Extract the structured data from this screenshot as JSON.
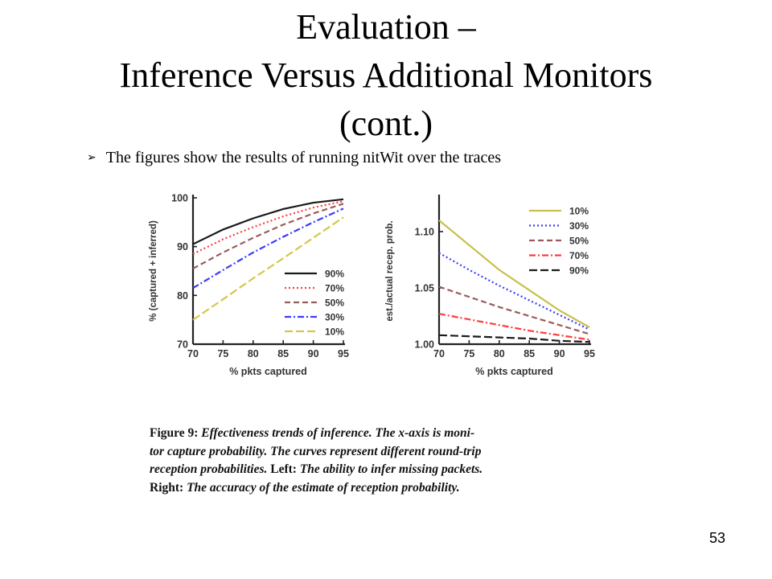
{
  "slide": {
    "title_lines": [
      "Evaluation –",
      "Inference Versus Additional Monitors",
      "(cont.)"
    ],
    "bullet": "The figures show the results of running nitWit over the traces",
    "page_number": "53"
  },
  "caption": {
    "lines": [
      [
        {
          "t": "Figure 9:",
          "up": true
        },
        {
          "t": "  Effectiveness trends of inference.  The "
        },
        {
          "t": "x",
          "up": false
        },
        {
          "t": "-axis is moni-"
        }
      ],
      [
        {
          "t": "tor capture probability.  The curves represent different round-trip"
        }
      ],
      [
        {
          "t": "reception probabilities.  "
        },
        {
          "t": "Left:",
          "up": true
        },
        {
          "t": "  The ability to infer missing packets."
        }
      ],
      [
        {
          "t": "Right:",
          "up": true
        },
        {
          "t": "  The accuracy of the estimate of reception probability."
        }
      ]
    ]
  },
  "chart_data": [
    {
      "type": "line",
      "title": "",
      "xlabel": "% pkts captured",
      "ylabel": "% (captured + inferred)",
      "xlim": [
        70,
        95
      ],
      "ylim": [
        70,
        100
      ],
      "xticks": [
        70,
        75,
        80,
        85,
        90,
        95
      ],
      "yticks": [
        70,
        80,
        90,
        100
      ],
      "grid": false,
      "legend_position": "bottom-right",
      "x": [
        70,
        75,
        80,
        85,
        90,
        95
      ],
      "series": [
        {
          "name": "90%",
          "color": "#1a1a1a",
          "dash": "solid",
          "values": [
            90.5,
            93.5,
            95.8,
            97.7,
            99.0,
            99.7
          ]
        },
        {
          "name": "70%",
          "color": "#ff3b3b",
          "dash": "dot",
          "values": [
            88.5,
            91.5,
            94.0,
            96.2,
            98.0,
            99.3
          ]
        },
        {
          "name": "50%",
          "color": "#9a5a5a",
          "dash": "dash",
          "values": [
            85.5,
            88.8,
            91.8,
            94.5,
            96.8,
            98.8
          ]
        },
        {
          "name": "30%",
          "color": "#3a3aff",
          "dash": "dashdot",
          "values": [
            81.5,
            85.2,
            88.8,
            92.0,
            95.0,
            97.8
          ]
        },
        {
          "name": "10%",
          "color": "#d4c84a",
          "dash": "longdash",
          "values": [
            75.0,
            79.2,
            83.5,
            87.6,
            91.8,
            96.0
          ]
        }
      ]
    },
    {
      "type": "line",
      "title": "",
      "xlabel": "% pkts captured",
      "ylabel": "est./actual recep. prob.",
      "xlim": [
        70,
        95
      ],
      "ylim": [
        1.0,
        1.13
      ],
      "xticks": [
        70,
        75,
        80,
        85,
        90,
        95
      ],
      "yticks": [
        "1.00",
        "1.05",
        "1.10"
      ],
      "grid": false,
      "legend_position": "top-right",
      "x": [
        70,
        75,
        80,
        85,
        90,
        95
      ],
      "series": [
        {
          "name": "10%",
          "color": "#c8c04a",
          "dash": "solid",
          "values": [
            1.11,
            1.088,
            1.066,
            1.048,
            1.03,
            1.015
          ]
        },
        {
          "name": "30%",
          "color": "#3a3aff",
          "dash": "dot",
          "values": [
            1.081,
            1.066,
            1.052,
            1.039,
            1.026,
            1.013
          ]
        },
        {
          "name": "50%",
          "color": "#9a5a5a",
          "dash": "dash",
          "values": [
            1.051,
            1.042,
            1.033,
            1.025,
            1.017,
            1.009
          ]
        },
        {
          "name": "70%",
          "color": "#ff3b3b",
          "dash": "dashdot",
          "values": [
            1.027,
            1.022,
            1.017,
            1.012,
            1.008,
            1.004
          ]
        },
        {
          "name": "90%",
          "color": "#1a1a1a",
          "dash": "longdash",
          "values": [
            1.008,
            1.007,
            1.006,
            1.005,
            1.003,
            1.002
          ]
        }
      ]
    }
  ]
}
